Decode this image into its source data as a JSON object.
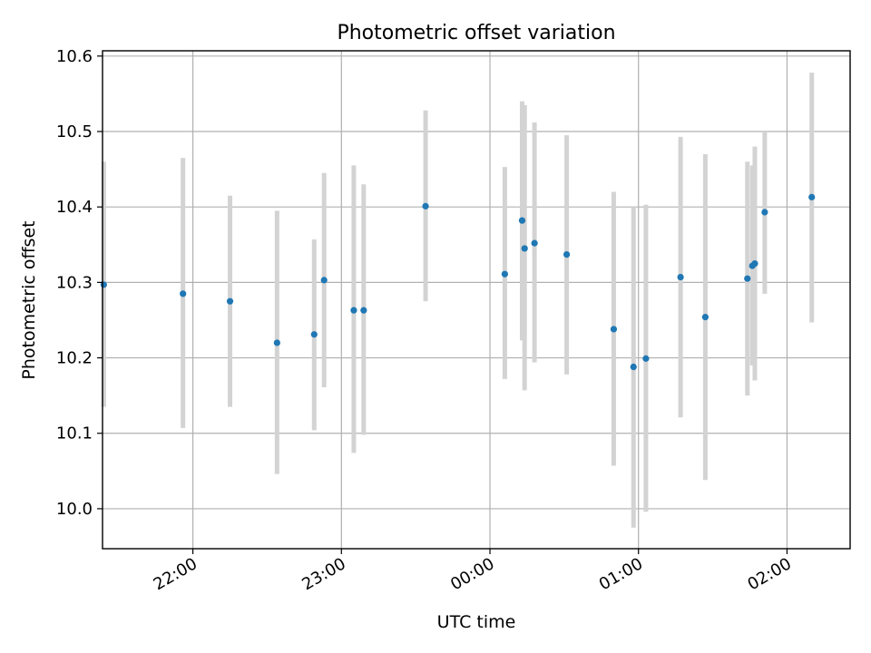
{
  "chart_data": {
    "type": "scatter",
    "title": "Photometric offset variation",
    "xlabel": "UTC time",
    "ylabel": "Photometric offset",
    "x_tick_labels": [
      "22:00",
      "23:00",
      "00:00",
      "01:00",
      "02:00"
    ],
    "y_tick_labels": [
      "10.0",
      "10.1",
      "10.2",
      "10.3",
      "10.4",
      "10.5",
      "10.6"
    ],
    "y_ticks": [
      10.0,
      10.1,
      10.2,
      10.3,
      10.4,
      10.5,
      10.6
    ],
    "x_ticks": [
      "22:00",
      "23:00",
      "00:00",
      "01:00",
      "02:00"
    ],
    "xlim": [
      "21:25",
      "02:24"
    ],
    "ylim": [
      9.947,
      10.607
    ],
    "grid": true,
    "point_color": "#1f77b4",
    "errorbar_color": "#d3d3d3",
    "points": [
      {
        "x": "21:24",
        "y": 10.297,
        "ylow": 10.135,
        "yhigh": 10.46
      },
      {
        "x": "21:56",
        "y": 10.285,
        "ylow": 10.107,
        "yhigh": 10.465
      },
      {
        "x": "22:15",
        "y": 10.275,
        "ylow": 10.135,
        "yhigh": 10.415
      },
      {
        "x": "22:34",
        "y": 10.22,
        "ylow": 10.046,
        "yhigh": 10.395
      },
      {
        "x": "22:49",
        "y": 10.231,
        "ylow": 10.104,
        "yhigh": 10.357
      },
      {
        "x": "22:53",
        "y": 10.303,
        "ylow": 10.161,
        "yhigh": 10.445
      },
      {
        "x": "23:05",
        "y": 10.263,
        "ylow": 10.074,
        "yhigh": 10.455
      },
      {
        "x": "23:09",
        "y": 10.263,
        "ylow": 10.098,
        "yhigh": 10.43
      },
      {
        "x": "23:34",
        "y": 10.401,
        "ylow": 10.275,
        "yhigh": 10.528
      },
      {
        "x": "00:06",
        "y": 10.311,
        "ylow": 10.172,
        "yhigh": 10.453
      },
      {
        "x": "00:13",
        "y": 10.382,
        "ylow": 10.223,
        "yhigh": 10.54
      },
      {
        "x": "00:14",
        "y": 10.345,
        "ylow": 10.157,
        "yhigh": 10.535
      },
      {
        "x": "00:18",
        "y": 10.352,
        "ylow": 10.194,
        "yhigh": 10.512
      },
      {
        "x": "00:31",
        "y": 10.337,
        "ylow": 10.178,
        "yhigh": 10.495
      },
      {
        "x": "00:50",
        "y": 10.238,
        "ylow": 10.057,
        "yhigh": 10.42
      },
      {
        "x": "00:58",
        "y": 10.188,
        "ylow": 9.975,
        "yhigh": 10.4
      },
      {
        "x": "01:03",
        "y": 10.199,
        "ylow": 9.996,
        "yhigh": 10.403
      },
      {
        "x": "01:17",
        "y": 10.307,
        "ylow": 10.121,
        "yhigh": 10.493
      },
      {
        "x": "01:27",
        "y": 10.254,
        "ylow": 10.038,
        "yhigh": 10.47
      },
      {
        "x": "01:44",
        "y": 10.305,
        "ylow": 10.15,
        "yhigh": 10.46
      },
      {
        "x": "01:46",
        "y": 10.322,
        "ylow": 10.19,
        "yhigh": 10.455
      },
      {
        "x": "01:47",
        "y": 10.325,
        "ylow": 10.17,
        "yhigh": 10.48
      },
      {
        "x": "01:51",
        "y": 10.393,
        "ylow": 10.285,
        "yhigh": 10.5
      },
      {
        "x": "02:10",
        "y": 10.413,
        "ylow": 10.247,
        "yhigh": 10.578
      }
    ]
  }
}
